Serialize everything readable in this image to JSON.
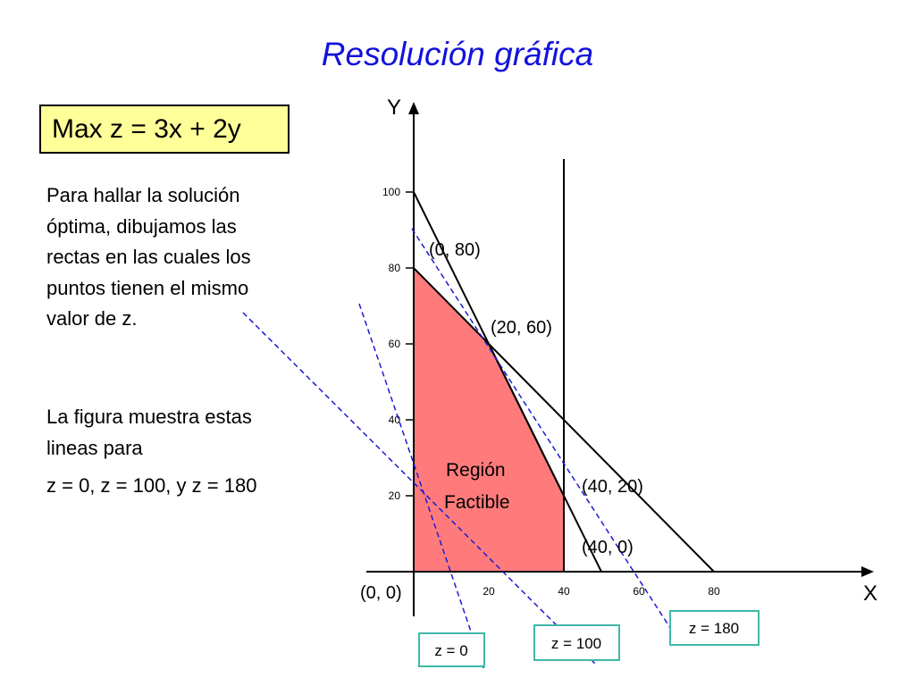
{
  "title": "Resolución gráfica",
  "objective": "Max z = 3x + 2y",
  "text": {
    "paragraph1": "Para hallar la solución óptima, dibujamos las rectas en las cuales los puntos tienen el mismo valor de z.",
    "paragraph2": "La figura muestra estas lineas para",
    "paragraph3": "z = 0, z = 100, y z = 180"
  },
  "chart_data": {
    "type": "line",
    "xlabel": "X",
    "ylabel": "Y",
    "x_ticks": [
      "20",
      "40",
      "60",
      "80"
    ],
    "y_ticks": [
      "20",
      "40",
      "60",
      "80",
      "100"
    ],
    "xlim": [
      0,
      80
    ],
    "ylim": [
      0,
      100
    ],
    "feasible_region": {
      "label": "Región Factible",
      "color": "#ff7b7b",
      "vertices": [
        [
          0,
          0
        ],
        [
          0,
          80
        ],
        [
          20,
          60
        ],
        [
          40,
          20
        ],
        [
          40,
          0
        ]
      ]
    },
    "constraint_lines": [
      {
        "from": [
          0,
          100
        ],
        "to": [
          50,
          0
        ]
      },
      {
        "from": [
          0,
          80
        ],
        "to": [
          80,
          0
        ]
      },
      {
        "vertical_x": 40
      }
    ],
    "iso_profit_lines": [
      {
        "label": "z = 0",
        "z": 0
      },
      {
        "label": "z = 100",
        "z": 100
      },
      {
        "label": "z = 180",
        "z": 180
      }
    ],
    "iso_line_color": "#1a1ad8",
    "point_labels": [
      "(0, 80)",
      "(20, 60)",
      "(40, 20)",
      "(40, 0)",
      "(0, 0)"
    ]
  }
}
